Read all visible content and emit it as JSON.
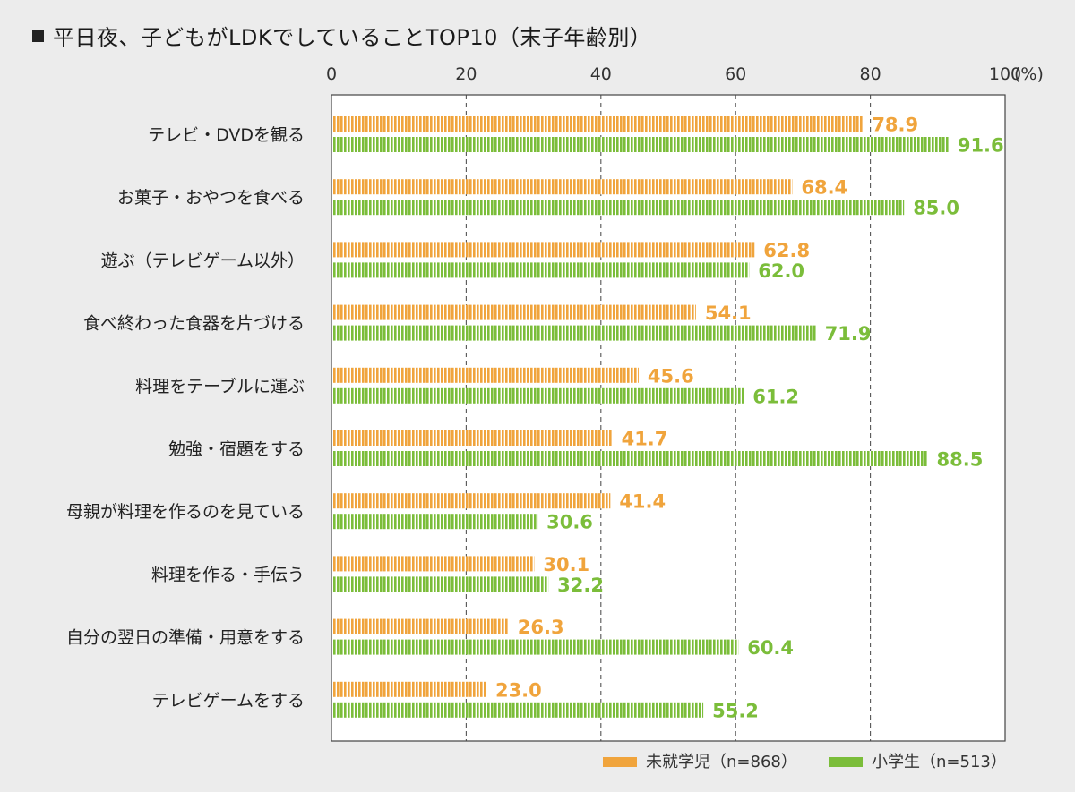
{
  "chart_data": {
    "type": "bar",
    "orientation": "horizontal",
    "title": "平日夜、子どもがLDKでしていることTOP10（末子年齢別）",
    "xlabel": "",
    "ylabel": "",
    "unit": "(%)",
    "xlim": [
      0,
      100
    ],
    "x_ticks": [
      "0",
      "20",
      "40",
      "60",
      "80",
      "100"
    ],
    "categories": [
      "テレビ・DVDを観る",
      "お菓子・おやつを食べる",
      "遊ぶ（テレビゲーム以外）",
      "食べ終わった食器を片づける",
      "料理をテーブルに運ぶ",
      "勉強・宿題をする",
      "母親が料理を作るのを見ている",
      "料理を作る・手伝う",
      "自分の翌日の準備・用意をする",
      "テレビゲームをする"
    ],
    "series": [
      {
        "name": "未就学児（n=868）",
        "color": "#f0a43c",
        "values": [
          78.9,
          68.4,
          62.8,
          54.1,
          45.6,
          41.7,
          41.4,
          30.1,
          26.3,
          23.0
        ],
        "labels": [
          "78.9",
          "68.4",
          "62.8",
          "54.1",
          "45.6",
          "41.7",
          "41.4",
          "30.1",
          "26.3",
          "23.0"
        ]
      },
      {
        "name": "小学生（n=513）",
        "color": "#7bbd3a",
        "values": [
          91.6,
          85.0,
          62.0,
          71.9,
          61.2,
          88.5,
          30.6,
          32.2,
          60.4,
          55.2
        ],
        "labels": [
          "91.6",
          "85.0",
          "62.0",
          "71.9",
          "61.2",
          "88.5",
          "30.6",
          "32.2",
          "60.4",
          "55.2"
        ]
      }
    ],
    "grid": true,
    "legend": "bottom-right"
  }
}
